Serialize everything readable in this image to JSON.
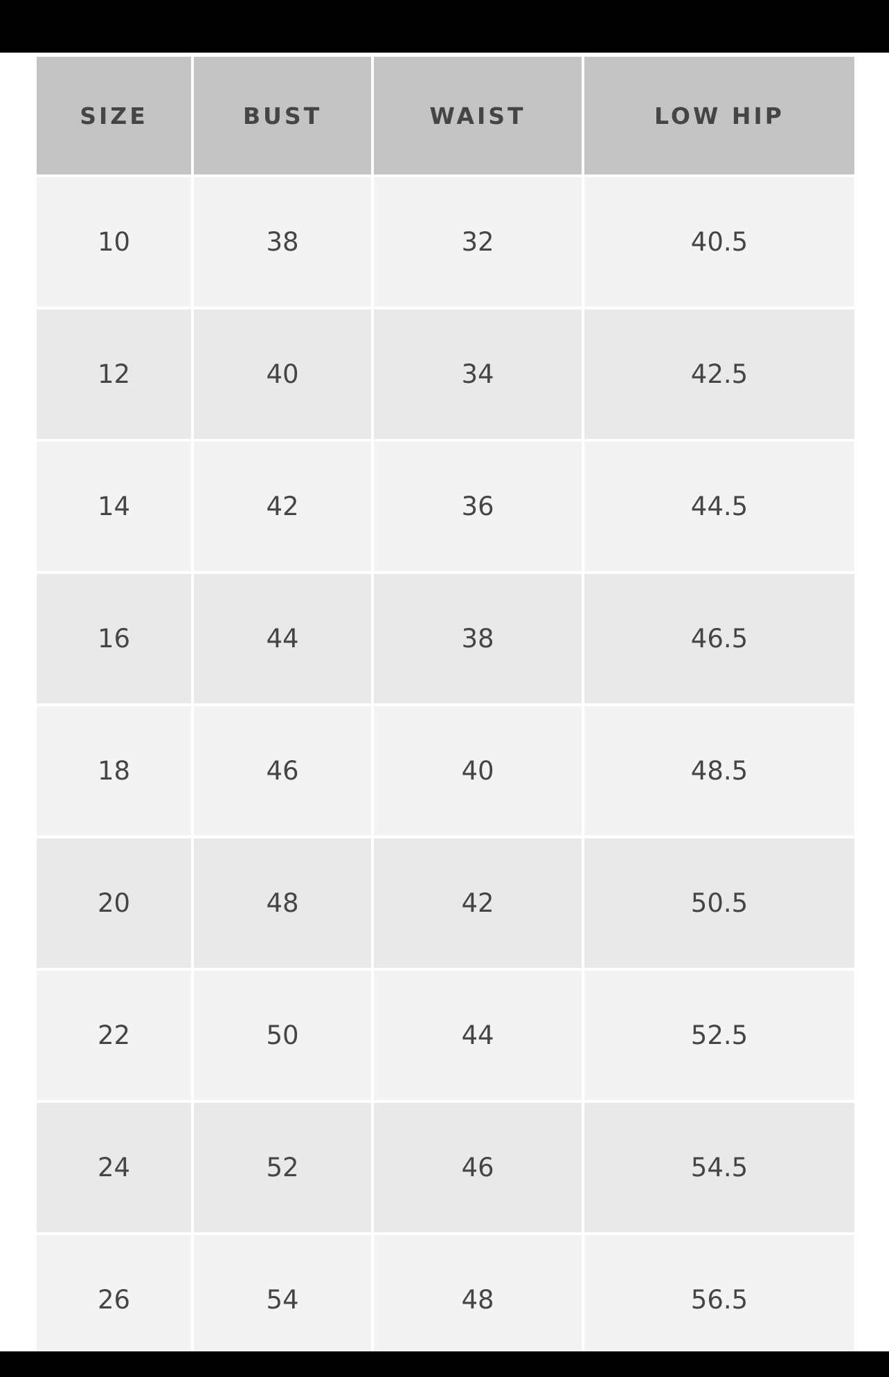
{
  "table": {
    "headers": [
      "SIZE",
      "BUST",
      "WAIST",
      "LOW HIP"
    ],
    "rows": [
      [
        "10",
        "38",
        "32",
        "40.5"
      ],
      [
        "12",
        "40",
        "34",
        "42.5"
      ],
      [
        "14",
        "42",
        "36",
        "44.5"
      ],
      [
        "16",
        "44",
        "38",
        "46.5"
      ],
      [
        "18",
        "46",
        "40",
        "48.5"
      ],
      [
        "20",
        "48",
        "42",
        "50.5"
      ],
      [
        "22",
        "50",
        "44",
        "52.5"
      ],
      [
        "24",
        "52",
        "46",
        "54.5"
      ],
      [
        "26",
        "54",
        "48",
        "56.5"
      ]
    ]
  }
}
